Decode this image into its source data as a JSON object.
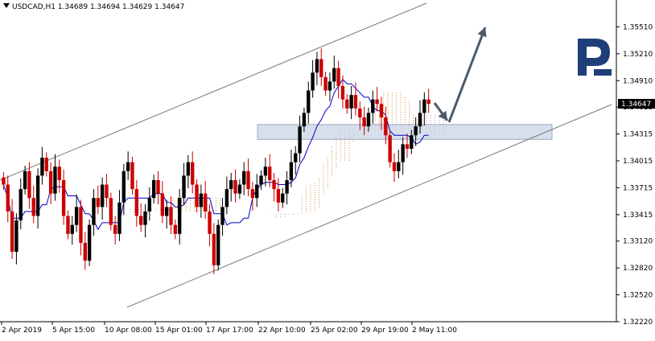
{
  "header": {
    "symbol": "USDCAD,H1",
    "open": "1.34689",
    "high": "1.34694",
    "low": "1.34629",
    "close": "1.34647"
  },
  "current_price_label": "1.34647",
  "colors": {
    "bull_candle": "#000000",
    "bear_candle": "#cc0000",
    "tenkan": "#0000cc",
    "kumo": "#d08a3a",
    "kumo_alt": "#c080c0",
    "channel": "#7a7a7a",
    "zone_fill": "#c8d4e4",
    "arrow": "#4a5a6a",
    "logo": "#1e3f7a",
    "price_badge": "#000000"
  },
  "logo_icon": "roboforex-logo",
  "chart_data": {
    "type": "candlestick",
    "symbol": "USDCAD",
    "timeframe": "H1",
    "ylim": [
      1.3222,
      1.3581
    ],
    "y_ticks": [
      "1.35510",
      "1.35210",
      "1.34910",
      "1.34615",
      "1.34315",
      "1.34015",
      "1.33715",
      "1.33415",
      "1.33120",
      "1.32820",
      "1.32520",
      "1.32220"
    ],
    "x_ticks": [
      "2 Apr 2019",
      "5 Apr 15:00",
      "10 Apr 08:00",
      "15 Apr 01:00",
      "17 Apr 17:00",
      "22 Apr 10:00",
      "25 Apr 02:00",
      "29 Apr 19:00",
      "2 May 11:00"
    ],
    "close_series": [
      1.3375,
      1.3345,
      1.33,
      1.3335,
      1.337,
      1.339,
      1.336,
      1.334,
      1.3385,
      1.3405,
      1.339,
      1.3365,
      1.3395,
      1.338,
      1.334,
      1.332,
      1.333,
      1.335,
      1.331,
      1.329,
      1.333,
      1.336,
      1.335,
      1.3375,
      1.336,
      1.333,
      1.332,
      1.3355,
      1.339,
      1.34,
      1.337,
      1.334,
      1.333,
      1.3345,
      1.336,
      1.338,
      1.3365,
      1.334,
      1.335,
      1.333,
      1.332,
      1.336,
      1.3385,
      1.34,
      1.3375,
      1.335,
      1.3365,
      1.3345,
      1.332,
      1.3285,
      1.333,
      1.335,
      1.337,
      1.338,
      1.3365,
      1.3375,
      1.339,
      1.337,
      1.336,
      1.3375,
      1.3385,
      1.3395,
      1.338,
      1.337,
      1.3355,
      1.3365,
      1.338,
      1.34,
      1.341,
      1.344,
      1.3455,
      1.348,
      1.35,
      1.3515,
      1.3495,
      1.348,
      1.349,
      1.3505,
      1.3485,
      1.347,
      1.346,
      1.3475,
      1.346,
      1.345,
      1.344,
      1.3455,
      1.347,
      1.3465,
      1.345,
      1.343,
      1.34,
      1.339,
      1.34,
      1.342,
      1.3415,
      1.343,
      1.344,
      1.3455,
      1.347,
      1.3465
    ],
    "channel": "ascending",
    "support_zone": [
      "1.34255",
      "1.34420"
    ],
    "forecast": "down to support zone, then up"
  }
}
